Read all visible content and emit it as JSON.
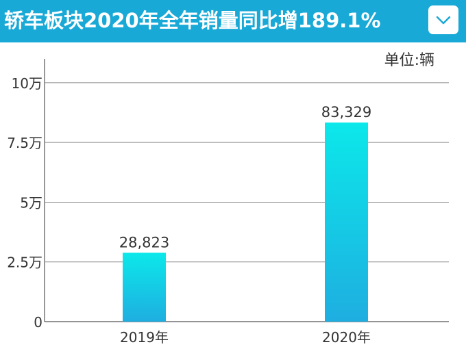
{
  "header": {
    "title": "轿车板块2020年全年销量同比增189.1%",
    "expand_icon": "chevron-down-icon",
    "background": "#19a9d6"
  },
  "unit_label": "单位:辆",
  "chart_data": {
    "type": "bar",
    "categories": [
      "2019年",
      "2020年"
    ],
    "values": [
      28823,
      83329
    ],
    "data_labels": [
      "28,823",
      "83,329"
    ],
    "title": "轿车板块2020年全年销量同比增189.1%",
    "xlabel": "",
    "ylabel": "",
    "ylim": [
      0,
      110000
    ],
    "yticks": [
      0,
      25000,
      50000,
      75000,
      100000
    ],
    "ytick_labels": [
      "0",
      "2.5万",
      "5万",
      "7.5万",
      "10万"
    ],
    "grid": true,
    "bar_color_top": "#0ce8ea",
    "bar_color_bottom": "#1eaee0"
  }
}
